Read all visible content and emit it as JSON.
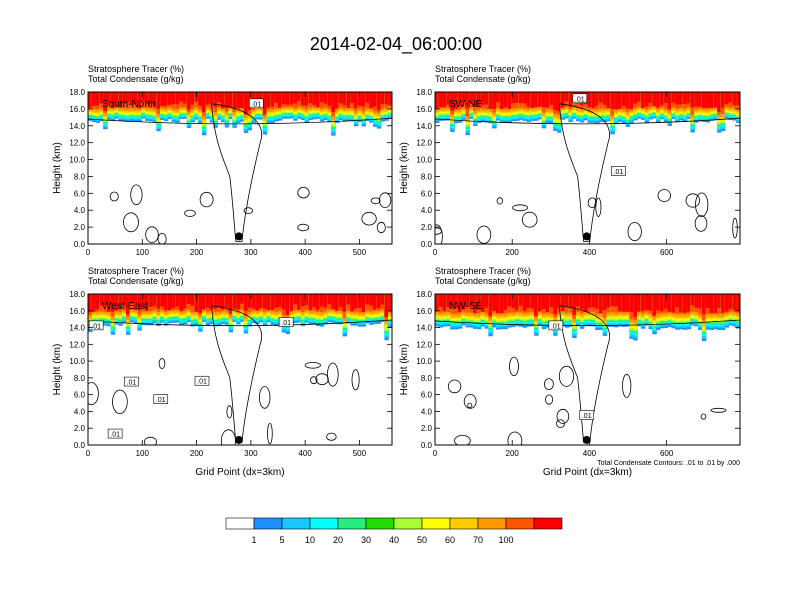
{
  "title": "2014-02-04_06:00:00",
  "chart_data": [
    {
      "type": "heatmap",
      "panel_label": "South-North",
      "left_title_1": "Stratosphere Tracer   (%)",
      "left_title_2": "Total Condensate   (g/kg)",
      "ylabel": "Height (km)",
      "xlabel": "",
      "ylim": [
        0,
        18
      ],
      "xlim": [
        0,
        560
      ],
      "x_ticks": [
        "0",
        "100",
        "200",
        "300",
        "400",
        "500"
      ],
      "y_ticks": [
        "0.0",
        "2.0",
        "4.0",
        "6.0",
        "8.0",
        "10.0",
        "12.0",
        "14.0",
        "16.0",
        "18.0"
      ],
      "tracer_base_km": 14.6,
      "tracer_top_km": 18.0,
      "contour_labels": [
        {
          "x": 310,
          "y": 16.6,
          "text": ".01"
        }
      ],
      "marker": {
        "x": 278,
        "y": 0.9
      }
    },
    {
      "type": "heatmap",
      "panel_label": "SW-NE",
      "left_title_1": "Stratosphere Tracer   (%)",
      "left_title_2": "Total Condensate   (g/kg)",
      "ylabel": "Height (km)",
      "xlabel": "",
      "ylim": [
        0,
        18
      ],
      "xlim": [
        0,
        790
      ],
      "x_ticks": [
        "0",
        "200",
        "400",
        "600"
      ],
      "y_ticks": [
        "0.0",
        "2.0",
        "4.0",
        "6.0",
        "8.0",
        "10.0",
        "12.0",
        "14.0",
        "16.0",
        "18.0"
      ],
      "tracer_base_km": 14.6,
      "tracer_top_km": 18.0,
      "contour_labels": [
        {
          "x": 375,
          "y": 17.2,
          "text": ".01"
        },
        {
          "x": 475,
          "y": 8.6,
          "text": ".01"
        }
      ],
      "marker": {
        "x": 393,
        "y": 0.9
      }
    },
    {
      "type": "heatmap",
      "panel_label": "West-East",
      "left_title_1": "Stratosphere Tracer   (%)",
      "left_title_2": "Total Condensate   (g/kg)",
      "ylabel": "Height (km)",
      "xlabel": "Grid Point (dx=3km)",
      "ylim": [
        0,
        18
      ],
      "xlim": [
        0,
        560
      ],
      "x_ticks": [
        "0",
        "100",
        "200",
        "300",
        "400",
        "500"
      ],
      "y_ticks": [
        "0.0",
        "2.0",
        "4.0",
        "6.0",
        "8.0",
        "10.0",
        "12.0",
        "14.0",
        "16.0",
        "18.0"
      ],
      "tracer_base_km": 14.4,
      "tracer_top_km": 18.0,
      "contour_labels": [
        {
          "x": 15,
          "y": 14.2,
          "text": ".01"
        },
        {
          "x": 80,
          "y": 7.5,
          "text": ".01"
        },
        {
          "x": 50,
          "y": 1.3,
          "text": ".01"
        },
        {
          "x": 134,
          "y": 5.4,
          "text": ".01"
        },
        {
          "x": 210,
          "y": 7.6,
          "text": ".01"
        },
        {
          "x": 365,
          "y": 14.6,
          "text": ".01"
        }
      ],
      "marker": {
        "x": 278,
        "y": 0.6
      }
    },
    {
      "type": "heatmap",
      "panel_label": "NW-SE",
      "left_title_1": "Stratosphere Tracer   (%)",
      "left_title_2": "Total Condensate   (g/kg)",
      "ylabel": "Height (km)",
      "xlabel": "Grid Point (dx=3km)",
      "ylim": [
        0,
        18
      ],
      "xlim": [
        0,
        790
      ],
      "x_ticks": [
        "0",
        "200",
        "400",
        "600"
      ],
      "y_ticks": [
        "0.0",
        "2.0",
        "4.0",
        "6.0",
        "8.0",
        "10.0",
        "12.0",
        "14.0",
        "16.0",
        "18.0"
      ],
      "tracer_base_km": 14.0,
      "tracer_top_km": 18.0,
      "contour_labels": [
        {
          "x": 313,
          "y": 14.2,
          "text": ".01"
        },
        {
          "x": 393,
          "y": 3.5,
          "text": ".01"
        }
      ],
      "marker": {
        "x": 393,
        "y": 0.6
      },
      "footer_note": "Total Condensate Contours: .01 to .01 by .000"
    }
  ],
  "colorbar": {
    "levels": [
      "1",
      "5",
      "10",
      "20",
      "30",
      "40",
      "50",
      "60",
      "70",
      "100"
    ],
    "colors": [
      "#ffffff",
      "#1e8fff",
      "#19c8ff",
      "#00ffff",
      "#22ee80",
      "#22dd00",
      "#aaff33",
      "#ffff00",
      "#ffcc00",
      "#ff9900",
      "#ff5500",
      "#ff0000"
    ]
  }
}
